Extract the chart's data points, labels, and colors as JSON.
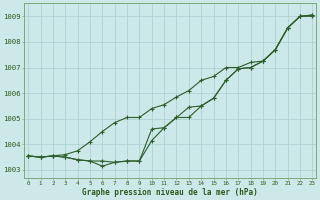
{
  "xlabel": "Graphe pression niveau de la mer (hPa)",
  "x": [
    0,
    1,
    2,
    3,
    4,
    5,
    6,
    7,
    8,
    9,
    10,
    11,
    12,
    13,
    14,
    15,
    16,
    17,
    18,
    19,
    20,
    21,
    22,
    23
  ],
  "line1": [
    1003.55,
    1003.5,
    1003.55,
    1003.6,
    1003.75,
    1004.1,
    1004.5,
    1004.85,
    1005.05,
    1005.05,
    1005.4,
    1005.55,
    1005.85,
    1006.1,
    1006.5,
    1006.65,
    1007.0,
    1007.0,
    1007.2,
    1007.25,
    1007.7,
    1008.55,
    1009.0,
    1009.0
  ],
  "line2": [
    1003.55,
    1003.5,
    1003.55,
    1003.5,
    1003.4,
    1003.35,
    1003.35,
    1003.3,
    1003.35,
    1003.35,
    1004.6,
    1004.65,
    1005.05,
    1005.05,
    1005.5,
    1005.8,
    1006.5,
    1006.95,
    1007.0,
    1007.25,
    1007.7,
    1008.55,
    1009.0,
    1009.05
  ],
  "line3": [
    1003.55,
    1003.5,
    1003.55,
    1003.5,
    1003.4,
    1003.35,
    1003.15,
    1003.3,
    1003.35,
    1003.35,
    1004.15,
    1004.65,
    1005.05,
    1005.45,
    1005.5,
    1005.8,
    1006.5,
    1006.95,
    1007.0,
    1007.25,
    1007.7,
    1008.55,
    1009.0,
    1009.05
  ],
  "bg_color": "#cde8e8",
  "grid_color": "#aacece",
  "line_color": "#2d5e2d",
  "tick_label_color": "#2d5a1e",
  "ylabel_values": [
    1003,
    1004,
    1005,
    1006,
    1007,
    1008,
    1009
  ],
  "ylim": [
    1002.7,
    1009.5
  ],
  "xlim": [
    -0.3,
    23.3
  ]
}
